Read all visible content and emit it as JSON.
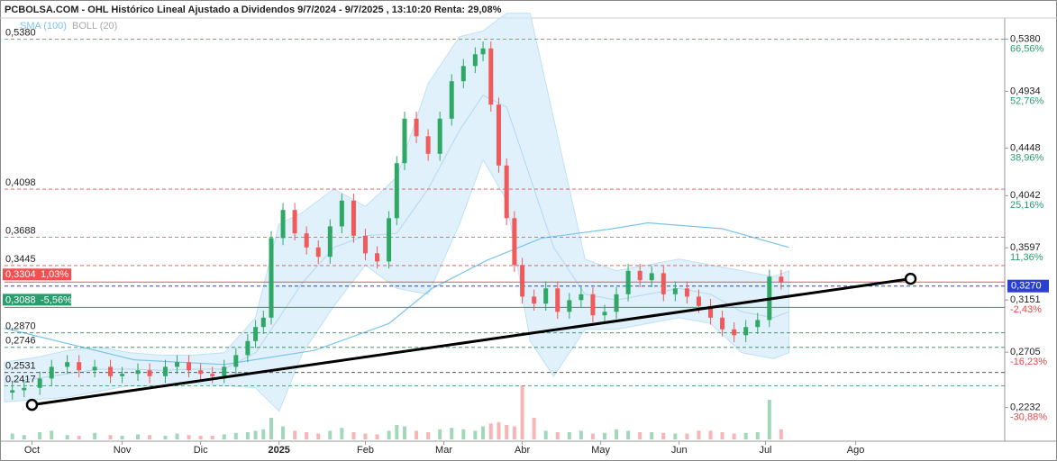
{
  "chart_data": {
    "type": "candlestick",
    "title": "PCBOLSA.COM - OHL Histórico Lineal Ajustado a Dividendos 9/7/2024 - 9/7/2025 , 13:10:20 Renta: 29,08%",
    "legend": [
      "SMA (100)",
      "BOLL (20)"
    ],
    "xlim": [
      0,
      255
    ],
    "ylim": [
      0.196,
      0.556
    ],
    "xticks": [
      {
        "value": 7,
        "label": "Oct"
      },
      {
        "value": 30,
        "label": "Nov"
      },
      {
        "value": 50,
        "label": "Dic"
      },
      {
        "value": 70,
        "label": "2025"
      },
      {
        "value": 92,
        "label": "Feb"
      },
      {
        "value": 112,
        "label": "Mar"
      },
      {
        "value": 132,
        "label": "Abr"
      },
      {
        "value": 152,
        "label": "May"
      },
      {
        "value": 172,
        "label": "Jun"
      },
      {
        "value": 194,
        "label": "Jul"
      },
      {
        "value": 217,
        "label": "Ago"
      }
    ],
    "yticks": [
      {
        "value": 0.538,
        "label": "0,5380"
      },
      {
        "value": 0.4934,
        "label": "0,4934"
      },
      {
        "value": 0.4448,
        "label": "0,4448"
      },
      {
        "value": 0.4042,
        "label": "0,4042"
      },
      {
        "value": 0.3597,
        "label": "0,3597"
      },
      {
        "value": 0.3151,
        "label": "0,3151"
      },
      {
        "value": 0.2705,
        "label": "0,2705"
      },
      {
        "value": 0.2232,
        "label": "0,2232"
      }
    ],
    "ytick_changes": [
      "66,56%",
      "52,76%",
      "38,96%",
      "25,16%",
      "11,36%",
      "-2,43%",
      "-16,23%",
      "-30,88%"
    ],
    "current": {
      "value": 0.327,
      "label": "0,3270",
      "color": "#2b3fd1"
    },
    "levels": [
      {
        "value": 0.538,
        "label": "0,5380",
        "color": "#d9534f"
      },
      {
        "value": 0.4098,
        "label": "0,4098",
        "color": "#d9534f"
      },
      {
        "value": 0.3688,
        "label": "0,3688",
        "color": "#d9534f"
      },
      {
        "value": 0.3445,
        "label": "0,3445",
        "color": "#d9534f"
      },
      {
        "value": 0.287,
        "label": "0,2870",
        "color": "#2a8a5a"
      },
      {
        "value": 0.2746,
        "label": "0,2746",
        "color": "#2a8a5a"
      },
      {
        "value": 0.2531,
        "label": "0,2531",
        "color": "#222222"
      },
      {
        "value": 0.2417,
        "label": "0,2417",
        "color": "#2a8a5a"
      }
    ],
    "markers": [
      {
        "value": 0.3304,
        "label": "0,3304",
        "change": "1,03%",
        "color": "#f05050"
      },
      {
        "value": 0.3088,
        "label": "0,3088",
        "change": "-5,56%",
        "color": "#2a9d6f"
      }
    ],
    "up_color": "#2fa866",
    "down_color": "#f05a5a",
    "vlim": [
      0,
      100
    ],
    "candles": {
      "x": [
        2,
        5,
        9,
        12,
        16,
        19,
        23,
        27,
        30,
        34,
        37,
        41,
        44,
        47,
        50,
        53,
        56,
        59,
        62,
        64,
        66,
        68,
        71,
        74,
        77,
        80,
        83,
        86,
        89,
        92,
        95,
        98,
        100,
        102,
        105,
        108,
        111,
        114,
        117,
        120,
        122,
        124,
        126,
        128,
        130,
        132,
        135,
        138,
        141,
        144,
        147,
        150,
        153,
        156,
        159,
        162,
        165,
        168,
        171,
        174,
        177,
        180,
        183,
        186,
        189,
        192,
        195,
        198
      ],
      "open": [
        0.236,
        0.238,
        0.24,
        0.248,
        0.258,
        0.262,
        0.255,
        0.258,
        0.25,
        0.252,
        0.255,
        0.25,
        0.258,
        0.262,
        0.255,
        0.252,
        0.25,
        0.258,
        0.268,
        0.28,
        0.292,
        0.3,
        0.368,
        0.392,
        0.372,
        0.36,
        0.352,
        0.378,
        0.4,
        0.37,
        0.355,
        0.348,
        0.385,
        0.432,
        0.47,
        0.455,
        0.44,
        0.47,
        0.502,
        0.515,
        0.525,
        0.53,
        0.482,
        0.43,
        0.385,
        0.345,
        0.318,
        0.312,
        0.325,
        0.305,
        0.315,
        0.32,
        0.302,
        0.305,
        0.32,
        0.34,
        0.332,
        0.338,
        0.32,
        0.325,
        0.318,
        0.31,
        0.3,
        0.29,
        0.285,
        0.292,
        0.298,
        0.335
      ],
      "high": [
        0.244,
        0.246,
        0.254,
        0.264,
        0.268,
        0.268,
        0.264,
        0.264,
        0.258,
        0.261,
        0.261,
        0.264,
        0.268,
        0.268,
        0.261,
        0.258,
        0.264,
        0.274,
        0.286,
        0.298,
        0.306,
        0.374,
        0.398,
        0.398,
        0.378,
        0.366,
        0.384,
        0.406,
        0.406,
        0.376,
        0.361,
        0.391,
        0.438,
        0.476,
        0.476,
        0.461,
        0.476,
        0.508,
        0.521,
        0.531,
        0.536,
        0.536,
        0.488,
        0.436,
        0.391,
        0.351,
        0.324,
        0.331,
        0.331,
        0.321,
        0.326,
        0.326,
        0.311,
        0.326,
        0.346,
        0.346,
        0.344,
        0.344,
        0.331,
        0.331,
        0.324,
        0.316,
        0.306,
        0.296,
        0.298,
        0.304,
        0.341,
        0.341
      ],
      "low": [
        0.23,
        0.232,
        0.234,
        0.242,
        0.252,
        0.249,
        0.249,
        0.244,
        0.244,
        0.246,
        0.244,
        0.244,
        0.252,
        0.249,
        0.246,
        0.244,
        0.244,
        0.252,
        0.262,
        0.274,
        0.286,
        0.294,
        0.362,
        0.366,
        0.354,
        0.346,
        0.346,
        0.372,
        0.364,
        0.349,
        0.342,
        0.342,
        0.379,
        0.426,
        0.449,
        0.434,
        0.434,
        0.464,
        0.496,
        0.509,
        0.519,
        0.476,
        0.424,
        0.379,
        0.339,
        0.312,
        0.306,
        0.306,
        0.299,
        0.299,
        0.309,
        0.296,
        0.296,
        0.299,
        0.314,
        0.326,
        0.326,
        0.314,
        0.314,
        0.312,
        0.304,
        0.294,
        0.284,
        0.279,
        0.279,
        0.286,
        0.292,
        0.324
      ],
      "close": [
        0.238,
        0.24,
        0.248,
        0.258,
        0.262,
        0.255,
        0.258,
        0.25,
        0.252,
        0.255,
        0.25,
        0.258,
        0.262,
        0.255,
        0.252,
        0.25,
        0.258,
        0.268,
        0.28,
        0.292,
        0.3,
        0.368,
        0.392,
        0.372,
        0.36,
        0.352,
        0.378,
        0.4,
        0.37,
        0.355,
        0.348,
        0.385,
        0.432,
        0.47,
        0.455,
        0.44,
        0.47,
        0.502,
        0.515,
        0.525,
        0.53,
        0.482,
        0.43,
        0.385,
        0.345,
        0.318,
        0.312,
        0.325,
        0.305,
        0.315,
        0.32,
        0.302,
        0.305,
        0.32,
        0.34,
        0.332,
        0.338,
        0.32,
        0.325,
        0.318,
        0.31,
        0.3,
        0.29,
        0.285,
        0.292,
        0.298,
        0.335,
        0.33
      ],
      "volume": [
        8,
        6,
        10,
        12,
        6,
        5,
        9,
        6,
        5,
        7,
        6,
        5,
        8,
        6,
        5,
        5,
        7,
        9,
        10,
        12,
        14,
        30,
        18,
        12,
        10,
        8,
        12,
        16,
        10,
        8,
        7,
        12,
        20,
        18,
        12,
        10,
        14,
        16,
        14,
        12,
        18,
        22,
        24,
        20,
        18,
        75,
        30,
        12,
        10,
        10,
        12,
        8,
        9,
        14,
        12,
        10,
        10,
        9,
        8,
        8,
        12,
        12,
        10,
        8,
        9,
        10,
        55,
        14
      ]
    },
    "sma": {
      "color": "#7cc3ee",
      "x": [
        0,
        33,
        56,
        79,
        98,
        109,
        123,
        137,
        155,
        164,
        183,
        200
      ],
      "values": [
        0.291,
        0.264,
        0.26,
        0.272,
        0.295,
        0.325,
        0.349,
        0.368,
        0.376,
        0.381,
        0.376,
        0.36
      ]
    },
    "boll": {
      "color": "#d6ecfa",
      "x": [
        0,
        8,
        16,
        24,
        32,
        40,
        48,
        56,
        64,
        70,
        76,
        84,
        92,
        100,
        108,
        116,
        122,
        128,
        134,
        140,
        148,
        156,
        164,
        172,
        180,
        188,
        196,
        200
      ],
      "mid": [
        0.245,
        0.248,
        0.252,
        0.256,
        0.256,
        0.255,
        0.256,
        0.256,
        0.27,
        0.3,
        0.33,
        0.36,
        0.37,
        0.372,
        0.41,
        0.46,
        0.49,
        0.48,
        0.42,
        0.36,
        0.32,
        0.315,
        0.32,
        0.325,
        0.32,
        0.305,
        0.3,
        0.305
      ],
      "upper": [
        0.262,
        0.266,
        0.272,
        0.275,
        0.27,
        0.268,
        0.268,
        0.27,
        0.3,
        0.38,
        0.39,
        0.41,
        0.395,
        0.42,
        0.5,
        0.54,
        0.545,
        0.56,
        0.56,
        0.47,
        0.35,
        0.34,
        0.345,
        0.35,
        0.345,
        0.34,
        0.335,
        0.34
      ],
      "lower": [
        0.228,
        0.23,
        0.232,
        0.237,
        0.242,
        0.242,
        0.244,
        0.242,
        0.24,
        0.22,
        0.27,
        0.31,
        0.345,
        0.325,
        0.32,
        0.38,
        0.435,
        0.4,
        0.28,
        0.25,
        0.29,
        0.29,
        0.295,
        0.3,
        0.295,
        0.27,
        0.265,
        0.27
      ]
    },
    "trendline": {
      "x": [
        7,
        231
      ],
      "values": [
        0.2255,
        0.3332
      ]
    }
  }
}
